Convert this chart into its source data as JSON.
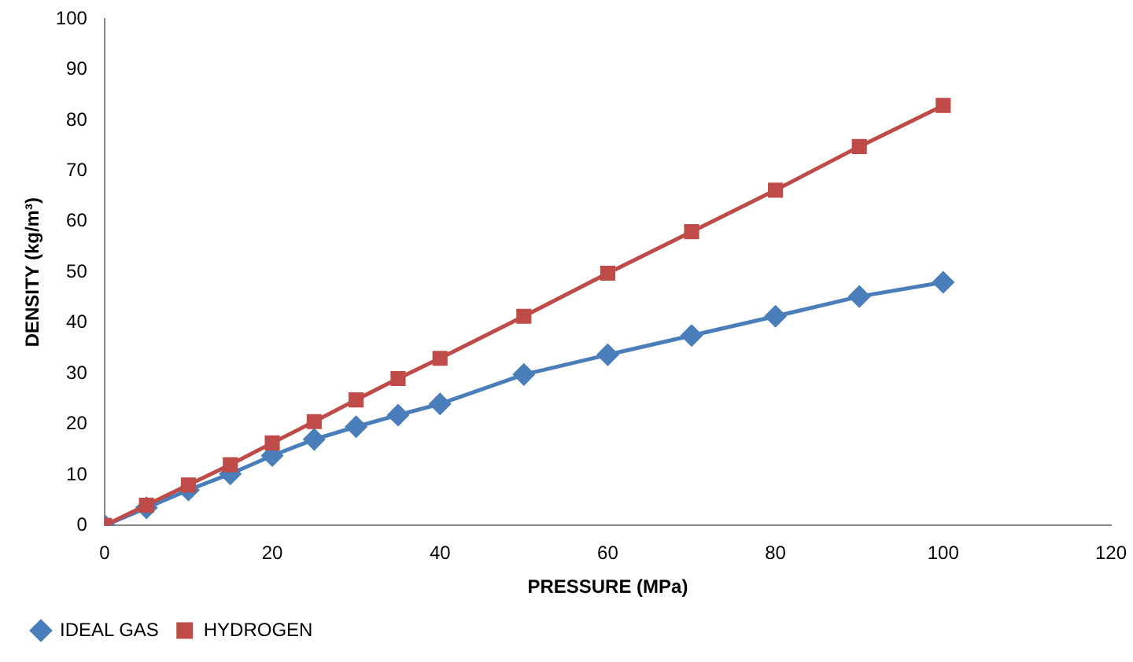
{
  "chart_data": {
    "type": "line",
    "xlabel": "PRESSURE (MPa)",
    "ylabel": "DENSITY (kg/m³)",
    "x": [
      0,
      5,
      10,
      15,
      20,
      25,
      30,
      35,
      40,
      50,
      60,
      70,
      80,
      90,
      100
    ],
    "series": [
      {
        "name": "IDEAL GAS",
        "color": "#4a7ebb",
        "marker": "diamond",
        "values": [
          0,
          3.5,
          7,
          10.2,
          13.8,
          17,
          19.5,
          21.8,
          24,
          29.8,
          33.7,
          37.5,
          41.3,
          45.2,
          48
        ]
      },
      {
        "name": "HYDROGEN",
        "color": "#be4b48",
        "marker": "square",
        "values": [
          0,
          4,
          8,
          12,
          16.3,
          20.5,
          24.8,
          29,
          33,
          41.3,
          49.8,
          58,
          66.2,
          74.8,
          82.9
        ]
      }
    ],
    "xlim": [
      0,
      120
    ],
    "xticks": [
      0,
      20,
      40,
      60,
      80,
      100,
      120
    ],
    "ylim": [
      0,
      100
    ],
    "yticks": [
      0,
      10,
      20,
      30,
      40,
      50,
      60,
      70,
      80,
      90,
      100
    ],
    "grid": false,
    "legend": "bottom left",
    "line_style": "solid"
  }
}
